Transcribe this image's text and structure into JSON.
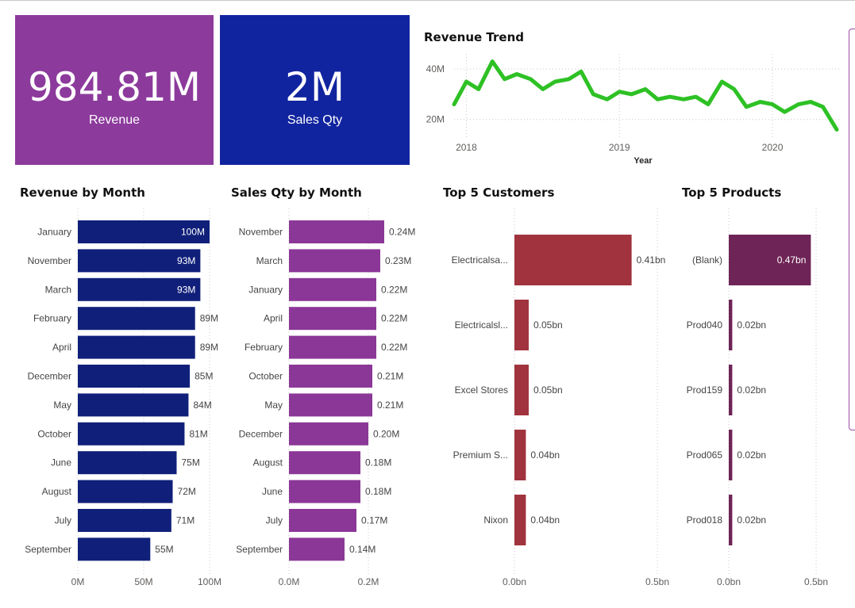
{
  "kpis": [
    {
      "value": "984.81M",
      "label": "Revenue",
      "color": "#8c3a9c"
    },
    {
      "value": "2M",
      "label": "Sales Qty",
      "color": "#11249f"
    }
  ],
  "colors": {
    "trend": "#2ec125",
    "revenue_bars": "#10207a",
    "qty_bars": "#8b3797",
    "customer_bars": "#a0333d",
    "product_bars": "#6e2456",
    "grid": "#c8c8c8",
    "axis_text": "#605e5c"
  },
  "titles": {
    "trend": "Revenue Trend",
    "rev_month": "Revenue by Month",
    "qty_month": "Sales Qty by Month",
    "customers": "Top 5 Customers",
    "products": "Top 5 Products"
  },
  "chart_data": [
    {
      "id": "trend",
      "type": "line",
      "title": "Revenue Trend",
      "xlabel": "Year",
      "ylabel": "",
      "xlim": [
        2017.92,
        2020.42
      ],
      "ylim": [
        13,
        46
      ],
      "yticks": [
        20,
        40
      ],
      "ytick_labels": [
        "20M",
        "40M"
      ],
      "xticks": [
        2018,
        2019,
        2020
      ],
      "xtick_labels": [
        "2018",
        "2019",
        "2020"
      ],
      "x": [
        2017.92,
        2018.0,
        2018.08,
        2018.17,
        2018.25,
        2018.33,
        2018.42,
        2018.5,
        2018.58,
        2018.67,
        2018.75,
        2018.83,
        2018.92,
        2019.0,
        2019.08,
        2019.17,
        2019.25,
        2019.33,
        2019.42,
        2019.5,
        2019.58,
        2019.67,
        2019.75,
        2019.83,
        2019.92,
        2020.0,
        2020.08,
        2020.17,
        2020.25,
        2020.33,
        2020.42
      ],
      "values": [
        26,
        35,
        32,
        43,
        36,
        38,
        36,
        32,
        35,
        36,
        39,
        30,
        28,
        31,
        30,
        32,
        28,
        29,
        28,
        29,
        26,
        35,
        32,
        25,
        27,
        26,
        23,
        26,
        27,
        25,
        16
      ]
    },
    {
      "id": "rev_month",
      "type": "bar",
      "orientation": "horizontal",
      "title": "Revenue by Month",
      "categories": [
        "January",
        "November",
        "March",
        "February",
        "April",
        "December",
        "May",
        "October",
        "June",
        "August",
        "July",
        "September"
      ],
      "values": [
        100,
        93,
        93,
        89,
        89,
        85,
        84,
        81,
        75,
        72,
        71,
        55
      ],
      "labels": [
        "100M",
        "93M",
        "93M",
        "89M",
        "89M",
        "85M",
        "84M",
        "81M",
        "75M",
        "72M",
        "71M",
        "55M"
      ],
      "xlim": [
        0,
        100
      ],
      "xticks": [
        0,
        50,
        100
      ],
      "xtick_labels": [
        "0M",
        "50M",
        "100M"
      ]
    },
    {
      "id": "qty_month",
      "type": "bar",
      "orientation": "horizontal",
      "title": "Sales Qty by Month",
      "categories": [
        "November",
        "March",
        "January",
        "April",
        "February",
        "October",
        "May",
        "December",
        "August",
        "June",
        "July",
        "September"
      ],
      "values": [
        0.24,
        0.23,
        0.22,
        0.22,
        0.22,
        0.21,
        0.21,
        0.2,
        0.18,
        0.18,
        0.17,
        0.14
      ],
      "labels": [
        "0.24M",
        "0.23M",
        "0.22M",
        "0.22M",
        "0.22M",
        "0.21M",
        "0.21M",
        "0.20M",
        "0.18M",
        "0.18M",
        "0.17M",
        "0.14M"
      ],
      "xlim": [
        0,
        0.29
      ],
      "xticks": [
        0,
        0.2
      ],
      "xtick_labels": [
        "0.0M",
        "0.2M"
      ]
    },
    {
      "id": "customers",
      "type": "bar",
      "orientation": "horizontal",
      "title": "Top 5 Customers",
      "categories": [
        "Electricalsa...",
        "Electricalsl...",
        "Excel Stores",
        "Premium S...",
        "Nixon"
      ],
      "values": [
        0.41,
        0.05,
        0.05,
        0.04,
        0.04
      ],
      "labels": [
        "0.41bn",
        "0.05bn",
        "0.05bn",
        "0.04bn",
        "0.04bn"
      ],
      "xlim": [
        0,
        0.5
      ],
      "xticks": [
        0,
        0.5
      ],
      "xtick_labels": [
        "0.0bn",
        "0.5bn"
      ]
    },
    {
      "id": "products",
      "type": "bar",
      "orientation": "horizontal",
      "title": "Top 5 Products",
      "categories": [
        "(Blank)",
        "Prod040",
        "Prod159",
        "Prod065",
        "Prod018"
      ],
      "values": [
        0.47,
        0.02,
        0.02,
        0.02,
        0.02
      ],
      "labels": [
        "0.47bn",
        "0.02bn",
        "0.02bn",
        "0.02bn",
        "0.02bn"
      ],
      "xlim": [
        0,
        0.5
      ],
      "xticks": [
        0,
        0.5
      ],
      "xtick_labels": [
        "0.0bn",
        "0.5bn"
      ]
    }
  ]
}
